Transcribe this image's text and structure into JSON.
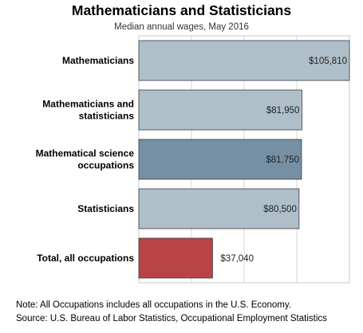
{
  "chart_data": {
    "type": "bar",
    "orientation": "horizontal",
    "title": "Mathematicians and Statisticians",
    "subtitle": "Median annual wages, May 2016",
    "categories": [
      [
        "Mathematicians"
      ],
      [
        "Mathematicians and",
        "statisticians"
      ],
      [
        "Mathematical science",
        "occupations"
      ],
      [
        "Statisticians"
      ],
      [
        "Total, all occupations"
      ]
    ],
    "values": [
      105810,
      81950,
      81750,
      80500,
      37040
    ],
    "value_labels": [
      "$105,810",
      "$81,950",
      "$81,750",
      "$80,500",
      "$37,040"
    ],
    "bar_colors": [
      "#aebfca",
      "#aebfca",
      "#7590a4",
      "#aebfca",
      "#b84446"
    ],
    "xlim": [
      0,
      105810
    ],
    "grid": true,
    "legend": "none"
  },
  "notes": {
    "note": "Note: All Occupations includes all occupations in the U.S. Economy.",
    "source": "Source: U.S. Bureau of Labor Statistics, Occupational Employment Statistics"
  }
}
